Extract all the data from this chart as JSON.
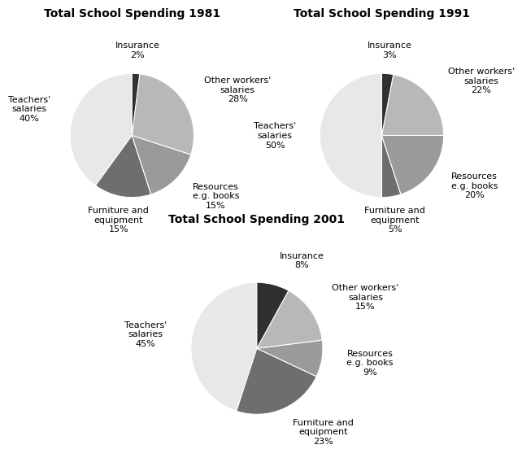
{
  "charts": [
    {
      "title": "Total School Spending 1981",
      "labels": [
        "Teachers'\nsalaries",
        "Furniture and\nequipment",
        "Resources\ne.g. books",
        "Other workers'\nsalaries",
        "Insurance"
      ],
      "pct_labels": [
        "40%",
        "15%",
        "15%",
        "28%",
        "2%"
      ],
      "values": [
        40,
        15,
        15,
        28,
        2
      ],
      "colors": [
        "#e8e8e8",
        "#6e6e6e",
        "#9a9a9a",
        "#b8b8b8",
        "#303030"
      ]
    },
    {
      "title": "Total School Spending 1991",
      "labels": [
        "Teachers'\nsalaries",
        "Furniture and\nequipment",
        "Resources\ne.g. books",
        "Other workers'\nsalaries",
        "Insurance"
      ],
      "pct_labels": [
        "50%",
        "5%",
        "20%",
        "22%",
        "3%"
      ],
      "values": [
        50,
        5,
        20,
        22,
        3
      ],
      "colors": [
        "#e8e8e8",
        "#6e6e6e",
        "#9a9a9a",
        "#b8b8b8",
        "#303030"
      ]
    },
    {
      "title": "Total School Spending 2001",
      "labels": [
        "Teachers'\nsalaries",
        "Furniture and\nequipment",
        "Resources\ne.g. books",
        "Other workers'\nsalaries",
        "Insurance"
      ],
      "pct_labels": [
        "45%",
        "23%",
        "9%",
        "15%",
        "8%"
      ],
      "values": [
        45,
        23,
        9,
        15,
        8
      ],
      "colors": [
        "#e8e8e8",
        "#6e6e6e",
        "#9a9a9a",
        "#b8b8b8",
        "#303030"
      ]
    }
  ],
  "bg_color": "#ffffff",
  "title_fontsize": 10,
  "label_fontsize": 8,
  "startangle": 90
}
